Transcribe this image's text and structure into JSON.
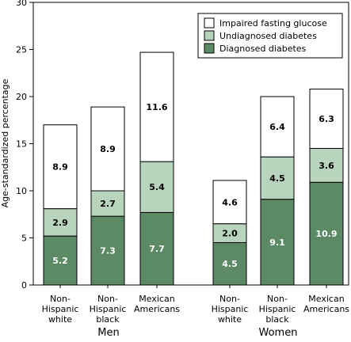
{
  "chart_data": {
    "type": "bar",
    "stacked": true,
    "ylabel": "Age-standardized percentage",
    "ylim": [
      0,
      30
    ],
    "yticks": [
      "0",
      "5",
      "10",
      "15",
      "20",
      "25",
      "30"
    ],
    "grid": false,
    "legend_position": "top-right",
    "groups": [
      {
        "label": "Men",
        "categories": [
          {
            "lines": [
              "Non-",
              "Hispanic",
              "white"
            ]
          },
          {
            "lines": [
              "Non-",
              "Hispanic",
              "black"
            ]
          },
          {
            "lines": [
              "Mexican",
              "Americans"
            ]
          }
        ]
      },
      {
        "label": "Women",
        "categories": [
          {
            "lines": [
              "Non-",
              "Hispanic",
              "white"
            ]
          },
          {
            "lines": [
              "Non-",
              "Hispanic",
              "black"
            ]
          },
          {
            "lines": [
              "Mexican",
              "Americans"
            ]
          }
        ]
      }
    ],
    "series": [
      {
        "name": "Diagnosed diabetes",
        "color": "#5b8a65",
        "label_color": "#ffffff",
        "values": [
          5.2,
          7.3,
          7.7,
          4.5,
          9.1,
          10.9
        ]
      },
      {
        "name": "Undiagnosed diabetes",
        "color": "#b8d4bc",
        "label_color": "#000000",
        "values": [
          2.9,
          2.7,
          5.4,
          2.0,
          4.5,
          3.6
        ]
      },
      {
        "name": "Impaired fasting glucose",
        "color": "#ffffff",
        "label_color": "#000000",
        "values": [
          8.9,
          8.9,
          11.6,
          4.6,
          6.4,
          6.3
        ]
      }
    ],
    "value_labels": [
      [
        "5.2",
        "7.3",
        "7.7",
        "4.5",
        "9.1",
        "10.9"
      ],
      [
        "2.9",
        "2.7",
        "5.4",
        "2.0",
        "4.5",
        "3.6"
      ],
      [
        "8.9",
        "8.9",
        "11.6",
        "4.6",
        "6.4",
        "6.3"
      ]
    ]
  }
}
